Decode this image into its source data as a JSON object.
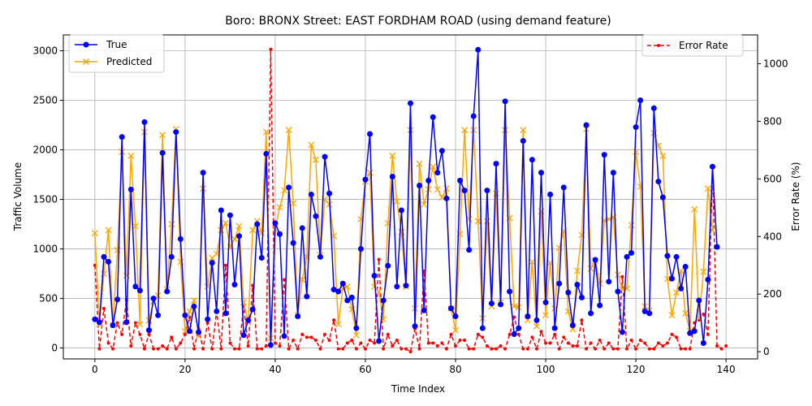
{
  "chart_data": {
    "type": "line",
    "title": "Boro: BRONX Street: EAST FORDHAM ROAD (using demand feature)",
    "xlabel": "Time Index",
    "ylabel": "Traffic Volume",
    "y2label": "Error Rate (%)",
    "xlim": [
      -7,
      147
    ],
    "ylim": [
      -110,
      3160
    ],
    "y2lim": [
      -25,
      1100
    ],
    "x_ticks": [
      0,
      20,
      40,
      60,
      80,
      100,
      120,
      140
    ],
    "y_ticks": [
      0,
      500,
      1000,
      1500,
      2000,
      2500,
      3000
    ],
    "y2_ticks": [
      0,
      200,
      400,
      600,
      800,
      1000
    ],
    "grid": true,
    "legend_left": {
      "placement": "upper-left",
      "entries": [
        "True",
        "Predicted"
      ]
    },
    "legend_right": {
      "placement": "upper-right",
      "entries": [
        "Error Rate"
      ]
    },
    "colors": {
      "true": "#0000ff",
      "predicted": "#ffa500",
      "error": "#ff0000"
    },
    "series": [
      {
        "name": "True",
        "axis": "left",
        "marker": "circle",
        "values": [
          290,
          260,
          920,
          870,
          230,
          490,
          2130,
          260,
          1600,
          620,
          580,
          2280,
          180,
          500,
          330,
          1970,
          570,
          920,
          2180,
          1100,
          330,
          170,
          420,
          160,
          1770,
          290,
          860,
          370,
          1390,
          350,
          1340,
          640,
          1130,
          130,
          280,
          390,
          1250,
          910,
          1960,
          30,
          1260,
          1150,
          120,
          1620,
          1060,
          320,
          1210,
          520,
          1550,
          1330,
          920,
          1930,
          1560,
          590,
          570,
          650,
          480,
          510,
          200,
          1000,
          1700,
          2160,
          730,
          70,
          480,
          830,
          1730,
          620,
          1390,
          630,
          2470,
          220,
          1640,
          380,
          1690,
          2330,
          1770,
          1990,
          1510,
          400,
          320,
          1690,
          1590,
          990,
          2340,
          3010,
          200,
          1590,
          450,
          1860,
          440,
          2490,
          570,
          140,
          200,
          2090,
          320,
          1900,
          280,
          1770,
          460,
          1550,
          200,
          650,
          1620,
          560,
          230,
          640,
          510,
          2250,
          350,
          890,
          430,
          1950,
          670,
          1770,
          570,
          160,
          920,
          960,
          2230,
          2500,
          370,
          350,
          2420,
          1680,
          1520,
          930,
          700,
          920,
          600,
          820,
          150,
          170,
          480,
          50,
          690,
          1830,
          1020
        ]
      },
      {
        "name": "Predicted",
        "axis": "left",
        "marker": "x",
        "values": [
          1160,
          240,
          750,
          1190,
          230,
          990,
          1980,
          730,
          1940,
          1230,
          240,
          2180,
          280,
          470,
          530,
          2150,
          590,
          1250,
          2210,
          870,
          170,
          370,
          480,
          120,
          1610,
          620,
          910,
          950,
          1190,
          1260,
          1020,
          1100,
          1230,
          460,
          260,
          1190,
          1280,
          1160,
          2180,
          100,
          1200,
          1420,
          1590,
          2200,
          1460,
          330,
          690,
          920,
          2050,
          1900,
          940,
          1500,
          1450,
          1130,
          240,
          600,
          620,
          390,
          130,
          1300,
          1680,
          1770,
          620,
          570,
          290,
          1260,
          1940,
          1480,
          1170,
          620,
          2200,
          400,
          1860,
          1450,
          1600,
          1830,
          1600,
          1520,
          1610,
          400,
          180,
          1150,
          2200,
          1300,
          2200,
          1280,
          300,
          1280,
          420,
          1560,
          460,
          2200,
          1310,
          420,
          410,
          2200,
          280,
          870,
          220,
          1380,
          330,
          860,
          400,
          1010,
          1180,
          370,
          190,
          780,
          1140,
          2210,
          800,
          880,
          650,
          1290,
          1300,
          1320,
          740,
          590,
          600,
          1240,
          1980,
          1630,
          420,
          380,
          2170,
          2040,
          1940,
          700,
          330,
          560,
          780,
          350,
          170,
          1400,
          300,
          770,
          1610,
          1190
        ]
      },
      {
        "name": "Error Rate",
        "axis": "right",
        "marker": "dot",
        "dashed": true,
        "values": [
          300,
          10,
          150,
          30,
          10,
          100,
          60,
          180,
          20,
          100,
          60,
          10,
          60,
          10,
          10,
          20,
          10,
          50,
          10,
          30,
          60,
          120,
          10,
          80,
          10,
          100,
          10,
          140,
          10,
          300,
          30,
          10,
          10,
          160,
          20,
          230,
          10,
          10,
          20,
          1050,
          30,
          20,
          250,
          10,
          40,
          10,
          60,
          50,
          50,
          40,
          10,
          60,
          40,
          110,
          10,
          10,
          30,
          40,
          10,
          30,
          10,
          40,
          30,
          320,
          10,
          60,
          20,
          40,
          10,
          10,
          0,
          80,
          10,
          280,
          30,
          30,
          20,
          30,
          10,
          60,
          20,
          40,
          40,
          10,
          10,
          60,
          50,
          20,
          10,
          10,
          20,
          10,
          60,
          120,
          60,
          10,
          10,
          50,
          10,
          70,
          30,
          30,
          60,
          10,
          50,
          30,
          20,
          20,
          110,
          10,
          30,
          10,
          40,
          10,
          30,
          10,
          10,
          260,
          10,
          40,
          10,
          40,
          30,
          10,
          10,
          30,
          20,
          30,
          60,
          50,
          10,
          10,
          10,
          100,
          110,
          130,
          60,
          640,
          20,
          10,
          20
        ]
      }
    ]
  }
}
